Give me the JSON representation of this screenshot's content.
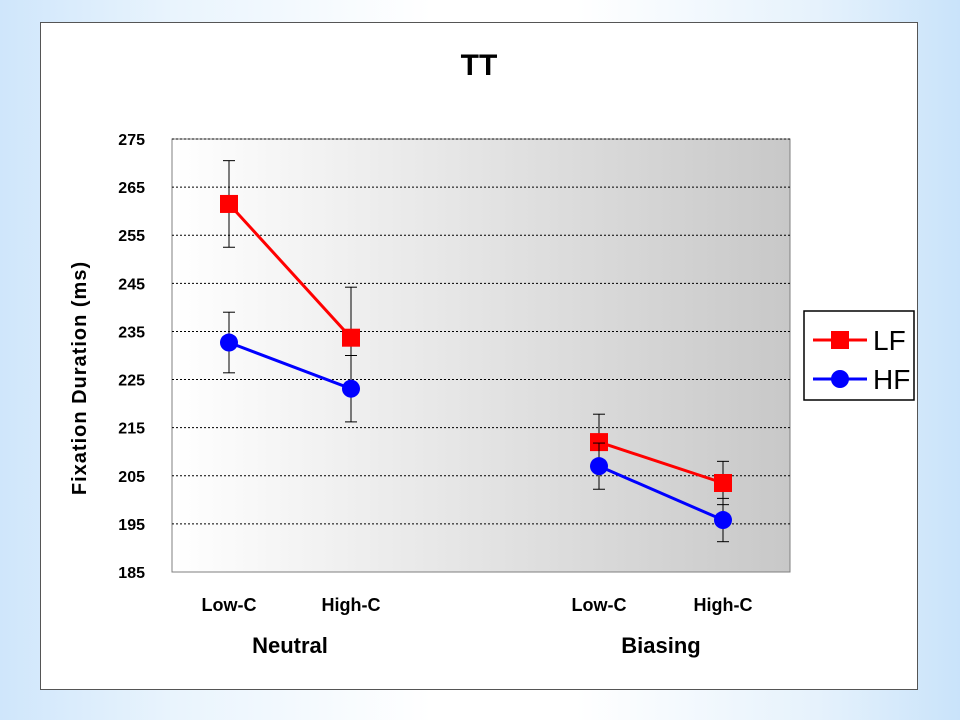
{
  "chart_data": {
    "type": "line",
    "title": "TT",
    "ylabel": "Fixation Duration (ms)",
    "xlabel": "",
    "ylim": [
      185,
      275
    ],
    "yticks": [
      185,
      195,
      205,
      215,
      225,
      235,
      245,
      255,
      265,
      275
    ],
    "categories": [
      "Low-C",
      "High-C",
      "Low-C",
      "High-C"
    ],
    "groups": [
      {
        "label": "Neutral",
        "categories": [
          "Low-C",
          "High-C"
        ]
      },
      {
        "label": "Biasing",
        "categories": [
          "Low-C",
          "High-C"
        ]
      }
    ],
    "grid": true,
    "legend_position": "right",
    "series": [
      {
        "name": "LF",
        "color": "#ff0000",
        "marker": "square",
        "values": [
          261.5,
          233.7,
          212.0,
          203.5
        ],
        "errors": [
          9.0,
          10.5,
          5.8,
          4.5
        ]
      },
      {
        "name": "HF",
        "color": "#0000ff",
        "marker": "circle",
        "values": [
          232.7,
          223.1,
          207.0,
          195.8
        ],
        "errors": [
          6.3,
          6.9,
          4.8,
          4.5
        ]
      }
    ]
  }
}
